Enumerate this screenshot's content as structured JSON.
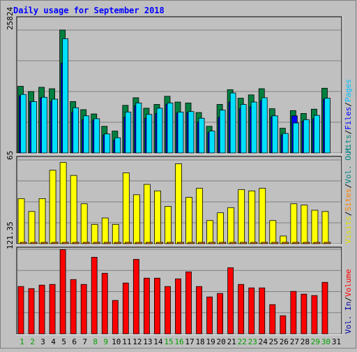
{
  "title": "Daily usage for September 2018",
  "colors": {
    "background": "#c0c0c0",
    "hits": "#008040",
    "files": "#0000ff",
    "pages": "#00e0ff",
    "visits": "#ffff00",
    "sites": "#ff8000",
    "volume": "#ff0000",
    "kbin": "#0000a0",
    "kbout": "#008080",
    "title": "#0000ff",
    "weekend_day": "#00a000",
    "weekday": "#000000"
  },
  "legends": {
    "top": [
      {
        "text": "Hits",
        "color": "#008080"
      },
      {
        "text": "/",
        "color": "#000000"
      },
      {
        "text": "Files",
        "color": "#0000ff"
      },
      {
        "text": "/",
        "color": "#000000"
      },
      {
        "text": "Pages",
        "color": "#00c0ff"
      }
    ],
    "middle": [
      {
        "text": "Visits",
        "color": "#e0e000"
      },
      {
        "text": "/",
        "color": "#000000"
      },
      {
        "text": "Sites",
        "color": "#ff8000"
      },
      {
        "text": "/",
        "color": "#000000"
      },
      {
        "text": "Vol. Out",
        "color": "#008080"
      }
    ],
    "bottom": [
      {
        "text": "Vol. In",
        "color": "#0000a0"
      },
      {
        "text": "/",
        "color": "#000000"
      },
      {
        "text": "Volume",
        "color": "#ff0000"
      }
    ]
  },
  "chart_data": [
    {
      "type": "bar",
      "panel": "hits_files_pages",
      "ymax_label": "25824",
      "ylim": [
        0,
        25824
      ],
      "grid": true,
      "categories": [
        "1",
        "2",
        "3",
        "4",
        "5",
        "6",
        "7",
        "8",
        "9",
        "10",
        "11",
        "12",
        "13",
        "14",
        "15",
        "16",
        "17",
        "18",
        "19",
        "20",
        "21",
        "22",
        "23",
        "24",
        "25",
        "26",
        "27",
        "28",
        "29",
        "30",
        "31"
      ],
      "series": [
        {
          "name": "Hits",
          "values": [
            14000,
            12900,
            13800,
            13500,
            25824,
            10800,
            9100,
            8200,
            5600,
            4600,
            10000,
            11600,
            9400,
            10200,
            11900,
            10700,
            10500,
            8500,
            5600,
            10200,
            13300,
            11500,
            12200,
            13500,
            9300,
            5200,
            8900,
            8300,
            9200,
            13600,
            0
          ]
        },
        {
          "name": "Files",
          "values": [
            12000,
            10800,
            11600,
            10900,
            18900,
            8600,
            7000,
            6900,
            3800,
            2700,
            7500,
            9900,
            7300,
            8300,
            10200,
            8400,
            8500,
            6500,
            4300,
            7500,
            10700,
            9300,
            9700,
            11000,
            7600,
            3800,
            7800,
            6700,
            7200,
            11300,
            0
          ]
        },
        {
          "name": "Pages",
          "values": [
            12300,
            10800,
            11700,
            11300,
            24000,
            9500,
            7800,
            7200,
            4000,
            3200,
            8600,
            10500,
            8100,
            9400,
            10500,
            8600,
            8700,
            7300,
            4600,
            9000,
            12600,
            10200,
            10700,
            11600,
            7800,
            4100,
            6300,
            7000,
            7900,
            11500,
            0
          ]
        }
      ]
    },
    {
      "type": "bar",
      "panel": "visits_sites",
      "ymax_label": "65",
      "ylim": [
        0,
        65
      ],
      "grid": true,
      "categories": [
        "1",
        "2",
        "3",
        "4",
        "5",
        "6",
        "7",
        "8",
        "9",
        "10",
        "11",
        "12",
        "13",
        "14",
        "15",
        "16",
        "17",
        "18",
        "19",
        "20",
        "21",
        "22",
        "23",
        "24",
        "25",
        "26",
        "27",
        "28",
        "29",
        "30",
        "31"
      ],
      "series": [
        {
          "name": "Visits",
          "values": [
            35,
            25,
            35,
            57,
            63,
            53,
            31,
            15,
            20,
            15,
            55,
            38,
            46,
            41,
            29,
            62,
            36,
            43,
            18,
            24,
            28,
            42,
            41,
            43,
            18,
            6,
            31,
            30,
            26,
            25,
            0
          ]
        },
        {
          "name": "Sites",
          "values": [
            1,
            1,
            1,
            1,
            1,
            1,
            1,
            1,
            1,
            1,
            1,
            1,
            1,
            1,
            1,
            1,
            1,
            1,
            1,
            1,
            1,
            1,
            1,
            1,
            1,
            1,
            1,
            1,
            1,
            1,
            0
          ]
        }
      ]
    },
    {
      "type": "bar",
      "panel": "volume",
      "ymax_label": "121.35",
      "ylim": [
        0,
        121.35
      ],
      "grid": true,
      "categories": [
        "1",
        "2",
        "3",
        "4",
        "5",
        "6",
        "7",
        "8",
        "9",
        "10",
        "11",
        "12",
        "13",
        "14",
        "15",
        "16",
        "17",
        "18",
        "19",
        "20",
        "21",
        "22",
        "23",
        "24",
        "25",
        "26",
        "27",
        "28",
        "29",
        "30",
        "31"
      ],
      "series": [
        {
          "name": "Volume",
          "values": [
            68,
            65,
            70,
            71,
            121,
            78,
            71,
            110,
            87,
            48,
            73,
            107,
            80,
            80,
            68,
            79,
            89,
            68,
            53,
            58,
            95,
            71,
            66,
            66,
            42,
            26,
            61,
            57,
            55,
            74,
            0
          ]
        }
      ]
    }
  ],
  "x_labels": [
    {
      "text": "1",
      "weekend": true
    },
    {
      "text": "2",
      "weekend": true
    },
    {
      "text": "3",
      "weekend": false
    },
    {
      "text": "4",
      "weekend": false
    },
    {
      "text": "5",
      "weekend": false
    },
    {
      "text": "6",
      "weekend": false
    },
    {
      "text": "7",
      "weekend": false
    },
    {
      "text": "8",
      "weekend": true
    },
    {
      "text": "9",
      "weekend": true
    },
    {
      "text": "10",
      "weekend": false
    },
    {
      "text": "11",
      "weekend": false
    },
    {
      "text": "12",
      "weekend": false
    },
    {
      "text": "13",
      "weekend": false
    },
    {
      "text": "14",
      "weekend": false
    },
    {
      "text": "15",
      "weekend": true
    },
    {
      "text": "16",
      "weekend": true
    },
    {
      "text": "17",
      "weekend": false
    },
    {
      "text": "18",
      "weekend": false
    },
    {
      "text": "19",
      "weekend": false
    },
    {
      "text": "20",
      "weekend": false
    },
    {
      "text": "21",
      "weekend": false
    },
    {
      "text": "22",
      "weekend": true
    },
    {
      "text": "23",
      "weekend": true
    },
    {
      "text": "24",
      "weekend": false
    },
    {
      "text": "25",
      "weekend": false
    },
    {
      "text": "26",
      "weekend": false
    },
    {
      "text": "27",
      "weekend": false
    },
    {
      "text": "28",
      "weekend": false
    },
    {
      "text": "29",
      "weekend": true
    },
    {
      "text": "30",
      "weekend": true
    },
    {
      "text": "31",
      "weekend": false
    }
  ]
}
